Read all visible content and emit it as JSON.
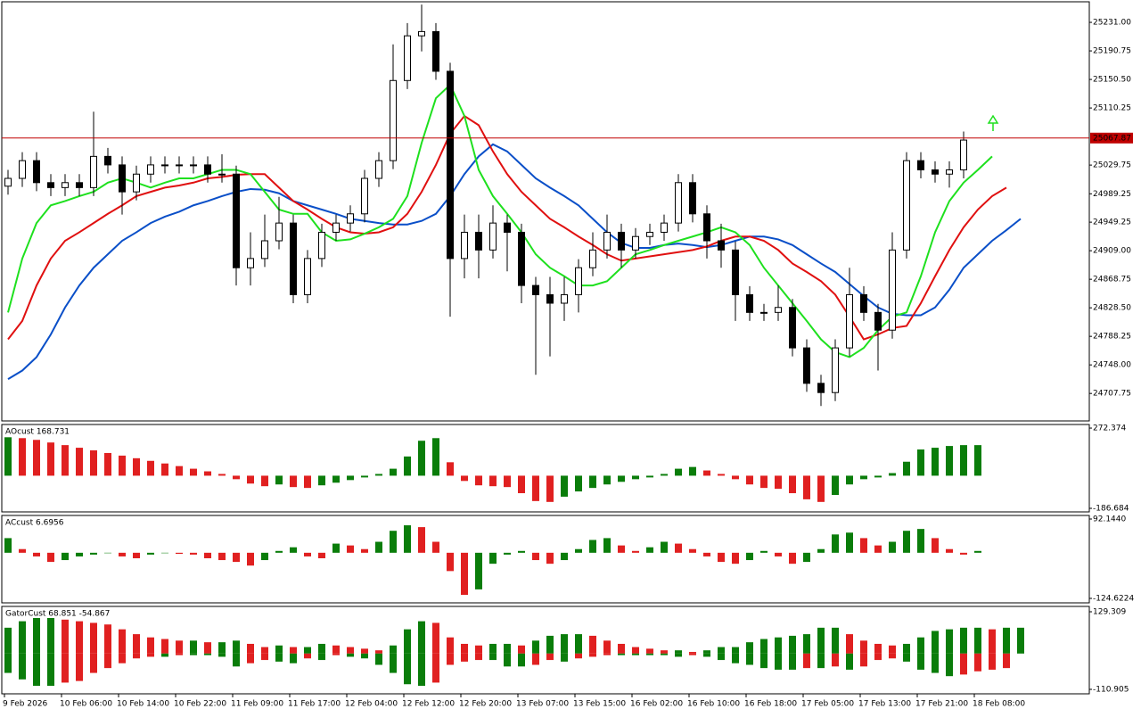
{
  "chart_data": [
    {
      "type": "candlestick",
      "categories": [
        "9 Feb 2026",
        null,
        null,
        null,
        "10 Feb 06:00",
        null,
        null,
        null,
        "10 Feb 14:00",
        null,
        null,
        null,
        "10 Feb 22:00",
        null,
        null,
        null,
        "11 Feb 09:00",
        null,
        null,
        null,
        "11 Feb 17:00",
        null,
        null,
        null,
        "12 Feb 04:00",
        null,
        null,
        null,
        "12 Feb 12:00",
        null,
        null,
        null,
        "12 Feb 20:00",
        null,
        null,
        null,
        "13 Feb 07:00",
        null,
        null,
        null,
        "13 Feb 15:00",
        null,
        null,
        null,
        "16 Feb 02:00",
        null,
        null,
        null,
        "16 Feb 10:00",
        null,
        null,
        null,
        "16 Feb 18:00",
        null,
        null,
        null,
        "17 Feb 05:00",
        null,
        null,
        null,
        "17 Feb 13:00",
        null,
        null,
        null,
        "17 Feb 21:00",
        null,
        null,
        null,
        "18 Feb 08:00",
        null,
        null,
        null
      ],
      "open": [
        25000,
        25011,
        25036,
        25005,
        24998,
        25005,
        24998,
        25042,
        25030,
        24992,
        25017,
        25030,
        25030,
        25030,
        25030,
        25017,
        25017,
        24885,
        24898,
        24923,
        24948,
        24847,
        24898,
        24935,
        24948,
        24961,
        25011,
        25036,
        25149,
        25212,
        25218,
        25162,
        24898,
        24935,
        24910,
        24948,
        24935,
        24860,
        24847,
        24835,
        24847,
        24885,
        24910,
        24935,
        24910,
        24929,
        24935,
        24948,
        25005,
        24961,
        24923,
        24910,
        24847,
        24822,
        24822,
        24829,
        24772,
        24722,
        24709,
        24772,
        24847,
        24822,
        24797,
        24910,
        25036,
        25023,
        25017,
        25023,
        null,
        null,
        null,
        null
      ],
      "high": [
        25023,
        25048,
        25048,
        25017,
        25017,
        25017,
        25105,
        25054,
        25042,
        25029,
        25042,
        25042,
        25042,
        25042,
        25042,
        25045,
        25029,
        24935,
        24960,
        24985,
        24960,
        24910,
        24947,
        24960,
        24973,
        25023,
        25048,
        25200,
        25230,
        25256,
        25230,
        25174,
        24960,
        24960,
        24973,
        24960,
        24947,
        24872,
        24872,
        24872,
        24897,
        24935,
        24960,
        24947,
        24941,
        24947,
        24960,
        25017,
        25017,
        24973,
        24947,
        24922,
        24859,
        24834,
        24860,
        24841,
        24784,
        24734,
        24784,
        24885,
        24859,
        24834,
        24935,
        25048,
        25048,
        25035,
        25035,
        25077,
        null,
        null,
        null,
        null
      ],
      "low": [
        24988,
        24999,
        24993,
        24986,
        24986,
        24986,
        24986,
        25018,
        24960,
        24980,
        25005,
        25018,
        25018,
        25018,
        25005,
        25005,
        24860,
        24860,
        24886,
        24911,
        24835,
        24835,
        24886,
        24923,
        24936,
        24949,
        24999,
        25024,
        25137,
        25190,
        25150,
        24816,
        24870,
        24870,
        24898,
        24880,
        24835,
        24734,
        24760,
        24810,
        24822,
        24873,
        24898,
        24885,
        24898,
        24917,
        24923,
        24936,
        24949,
        24898,
        24885,
        24810,
        24810,
        24810,
        24810,
        24760,
        24710,
        24690,
        24697,
        24760,
        24810,
        24740,
        24785,
        24898,
        25011,
        25005,
        24998,
        25011,
        null,
        null,
        null,
        null
      ],
      "close": [
        25011,
        25036,
        25005,
        24998,
        25005,
        24998,
        25042,
        25030,
        24992,
        25017,
        25030,
        25030,
        25030,
        25030,
        25017,
        25017,
        24885,
        24898,
        24923,
        24948,
        24847,
        24898,
        24935,
        24948,
        24961,
        25011,
        25036,
        25149,
        25212,
        25218,
        25162,
        24898,
        24935,
        24910,
        24948,
        24935,
        24860,
        24847,
        24835,
        24847,
        24885,
        24910,
        24935,
        24910,
        24929,
        24935,
        24948,
        25005,
        24961,
        24923,
        24910,
        24847,
        24822,
        24822,
        24829,
        24772,
        24722,
        24709,
        24772,
        24847,
        24822,
        24797,
        24910,
        25036,
        25023,
        25017,
        25023,
        25065,
        null,
        null,
        null,
        null
      ],
      "up_color": "#ffffff",
      "down_color": "#000000",
      "wick_color": "#000000",
      "series": [
        {
          "color": "#0a4fc8",
          "values": [
            24728,
            24740,
            24759,
            24791,
            24829,
            24860,
            24885,
            24904,
            24923,
            24935,
            24948,
            24957,
            24964,
            24973,
            24979,
            24986,
            24992,
            24996,
            24995,
            24990,
            24979,
            24973,
            24967,
            24961,
            24954,
            24951,
            24948,
            24946,
            24946,
            24951,
            24961,
            24986,
            25017,
            25042,
            25059,
            25049,
            25030,
            25011,
            24998,
            24986,
            24973,
            24954,
            24935,
            24920,
            24913,
            24913,
            24917,
            24919,
            24917,
            24914,
            24917,
            24923,
            24929,
            24929,
            24925,
            24917,
            24904,
            24891,
            24879,
            24862,
            24845,
            24829,
            24820,
            24818,
            24818,
            24829,
            24854,
            24885,
            24904,
            24923,
            24938,
            24954
          ]
        },
        {
          "color": "#e01010",
          "values": [
            24784,
            24810,
            24860,
            24898,
            24923,
            24935,
            24948,
            24961,
            24973,
            24986,
            24992,
            24998,
            25001,
            25005,
            25011,
            25013,
            25016,
            25017,
            25017,
            24998,
            24979,
            24967,
            24954,
            24942,
            24935,
            24933,
            24935,
            24942,
            24961,
            24992,
            25030,
            25074,
            25099,
            25086,
            25049,
            25017,
            24992,
            24973,
            24954,
            24942,
            24929,
            24917,
            24904,
            24895,
            24898,
            24901,
            24904,
            24907,
            24910,
            24915,
            24923,
            24929,
            24929,
            24923,
            24910,
            24891,
            24879,
            24866,
            24847,
            24816,
            24784,
            24791,
            24800,
            24803,
            24835,
            24873,
            24910,
            24942,
            24967,
            24986,
            24998,
            null
          ]
        },
        {
          "color": "#1ee01e",
          "values": [
            24822,
            24898,
            24948,
            24973,
            24979,
            24986,
            24992,
            25005,
            25011,
            25005,
            24998,
            25005,
            25011,
            25011,
            25017,
            25023,
            25023,
            25017,
            24992,
            24967,
            24961,
            24961,
            24935,
            24923,
            24925,
            24933,
            24942,
            24954,
            24986,
            25061,
            25124,
            25143,
            25099,
            25023,
            24986,
            24961,
            24935,
            24904,
            24885,
            24873,
            24860,
            24860,
            24866,
            24885,
            24904,
            24910,
            24917,
            24923,
            24929,
            24935,
            24942,
            24935,
            24917,
            24885,
            24860,
            24835,
            24810,
            24784,
            24766,
            24759,
            24772,
            24797,
            24816,
            24822,
            24873,
            24935,
            24979,
            25005,
            25023,
            25042,
            null,
            null
          ]
        }
      ],
      "current_price": 25067.87,
      "current_price_color": "#c00000",
      "ylim": [
        24669,
        25260
      ],
      "yticks": [
        {
          "value": 25231,
          "label": "25231.00"
        },
        25190.75,
        {
          "value": 25150.5,
          "label": "25150.50"
        },
        25110.25,
        25029.75,
        24989.25,
        24949.25,
        {
          "value": 24909,
          "label": "24909.00"
        },
        24868.75,
        {
          "value": 24828.5,
          "label": "24828.50"
        },
        24788.25,
        {
          "value": 24748,
          "label": "24748.00"
        },
        24707.75
      ]
    },
    {
      "type": "bar",
      "title": "AOcust 168.731",
      "color_by": "change",
      "up_color": "#0a7d0a",
      "down_color": "#e02020",
      "series": [
        {
          "values": [
            220,
            215,
            205,
            190,
            175,
            160,
            145,
            130,
            115,
            100,
            85,
            70,
            55,
            40,
            25,
            10,
            -20,
            -45,
            -60,
            -50,
            -65,
            -70,
            -55,
            -40,
            -25,
            -10,
            10,
            40,
            110,
            200,
            215,
            77,
            -30,
            -55,
            -60,
            -65,
            -100,
            -145,
            -150,
            -120,
            -90,
            -70,
            -50,
            -35,
            -20,
            -10,
            10,
            40,
            50,
            30,
            10,
            -20,
            -50,
            -70,
            -75,
            -100,
            -135,
            -150,
            -110,
            -50,
            -20,
            -10,
            15,
            80,
            150,
            160,
            170,
            175,
            175,
            null,
            null,
            null
          ]
        }
      ],
      "ylim": [
        -207,
        293
      ],
      "yticks": [
        272.374,
        -186.684
      ]
    },
    {
      "type": "bar",
      "title": "ACcust 6.6956",
      "color_by": "change",
      "up_color": "#0a7d0a",
      "down_color": "#e02020",
      "series": [
        {
          "values": [
            40,
            10,
            -10,
            -25,
            -20,
            -10,
            -5,
            0,
            -10,
            -15,
            -5,
            0,
            -3,
            -5,
            -15,
            -20,
            -25,
            -35,
            -20,
            5,
            15,
            -10,
            -15,
            25,
            20,
            10,
            30,
            60,
            75,
            70,
            30,
            -50,
            -115,
            -100,
            -30,
            -5,
            5,
            -20,
            -30,
            -20,
            10,
            35,
            40,
            20,
            5,
            15,
            30,
            25,
            10,
            -10,
            -25,
            -30,
            -20,
            5,
            -10,
            -30,
            -25,
            10,
            50,
            55,
            40,
            20,
            30,
            60,
            65,
            40,
            10,
            -5,
            5,
            null,
            null,
            null
          ]
        }
      ],
      "ylim": [
        -136.8,
        101.9
      ],
      "yticks": [
        {
          "value": 92.144,
          "label": "92.1440"
        },
        -124.6224
      ]
    },
    {
      "type": "bar",
      "title": "GatorCust 68.851 -54.867",
      "color_by": "magnitude",
      "up_color": "#0a7d0a",
      "down_color": "#e02020",
      "series": [
        {
          "values": [
            80,
            100,
            110,
            110,
            105,
            100,
            95,
            90,
            75,
            60,
            50,
            45,
            40,
            40,
            35,
            35,
            40,
            30,
            20,
            25,
            20,
            20,
            30,
            25,
            20,
            15,
            10,
            25,
            75,
            100,
            95,
            50,
            30,
            25,
            30,
            30,
            25,
            40,
            55,
            60,
            60,
            55,
            40,
            30,
            20,
            15,
            10,
            10,
            5,
            10,
            20,
            20,
            35,
            45,
            50,
            55,
            60,
            80,
            80,
            60,
            40,
            30,
            25,
            30,
            50,
            70,
            75,
            80,
            80,
            75,
            80,
            80
          ]
        },
        {
          "values": [
            -60,
            -80,
            -100,
            -100,
            -90,
            -85,
            -60,
            -45,
            -30,
            -15,
            -10,
            -10,
            -5,
            -5,
            -5,
            -10,
            -40,
            -30,
            -20,
            -25,
            -30,
            -15,
            -20,
            -5,
            -10,
            -15,
            -35,
            -60,
            -95,
            -100,
            -90,
            -35,
            -25,
            -20,
            -20,
            -40,
            -40,
            -35,
            -20,
            -25,
            -15,
            -10,
            -5,
            -5,
            -5,
            -5,
            -5,
            -10,
            -5,
            -10,
            -20,
            -30,
            -35,
            -45,
            -50,
            -50,
            -45,
            -45,
            -40,
            -50,
            -40,
            -20,
            -15,
            -25,
            -50,
            -60,
            -70,
            -65,
            -55,
            -50,
            -45,
            null
          ]
        }
      ],
      "ylim": [
        -124.7,
        145.9
      ],
      "yticks": [
        129.309,
        -110.905
      ]
    }
  ]
}
